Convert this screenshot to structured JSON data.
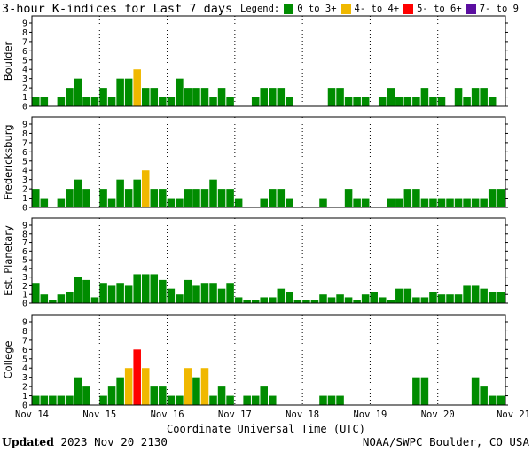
{
  "title": "3-hour K-indices for Last 7 days",
  "legend": {
    "label": "Legend:",
    "items": [
      {
        "label": "0 to 3+",
        "color": "#008c00"
      },
      {
        "label": "4- to 4+",
        "color": "#f0b800"
      },
      {
        "label": "5- to 6+",
        "color": "#ff0000"
      },
      {
        "label": "7- to 9",
        "color": "#5b0ea0"
      }
    ]
  },
  "footer": {
    "updated_label": "Updated",
    "updated_value": "2023 Nov 20 2130",
    "credit": "NOAA/SWPC Boulder, CO USA"
  },
  "chart_data": {
    "type": "bar",
    "xlabel": "Coordinate Universal Time (UTC)",
    "x_tick_labels": [
      "Nov 14",
      "Nov 15",
      "Nov 16",
      "Nov 17",
      "Nov 18",
      "Nov 19",
      "Nov 20",
      "Nov 21"
    ],
    "yticks": [
      0,
      1,
      2,
      3,
      4,
      5,
      6,
      7,
      8,
      9
    ],
    "ylim": [
      0,
      9
    ],
    "bars_per_day": 8,
    "color_thresholds": [
      {
        "min": 0,
        "color": "#008c00"
      },
      {
        "min": 3.67,
        "color": "#f0b800"
      },
      {
        "min": 4.67,
        "color": "#ff0000"
      },
      {
        "min": 6.67,
        "color": "#5b0ea0"
      }
    ],
    "panels": [
      {
        "name": "Boulder",
        "values": [
          1,
          1,
          0,
          1,
          2,
          3,
          1,
          1,
          2,
          1,
          3,
          3,
          4,
          2,
          2,
          1,
          1,
          3,
          2,
          2,
          2,
          1,
          2,
          1,
          0,
          0,
          1,
          2,
          2,
          2,
          1,
          0,
          0,
          0,
          0,
          2,
          2,
          1,
          1,
          1,
          0,
          1,
          2,
          1,
          1,
          1,
          2,
          1,
          1,
          0,
          2,
          1,
          2,
          2,
          1,
          0
        ]
      },
      {
        "name": "Fredericksburg",
        "values": [
          2,
          1,
          0,
          1,
          2,
          3,
          2,
          0,
          2,
          1,
          3,
          2,
          3,
          4,
          2,
          2,
          1,
          1,
          2,
          2,
          2,
          3,
          2,
          2,
          1,
          0,
          0,
          1,
          2,
          2,
          1,
          0,
          0,
          0,
          1,
          0,
          0,
          2,
          1,
          1,
          0,
          0,
          1,
          1,
          2,
          2,
          1,
          1,
          1,
          1,
          1,
          1,
          1,
          1,
          2,
          2
        ]
      },
      {
        "name": "Est. Planetary",
        "values": [
          2.33,
          1,
          0.33,
          1,
          1.33,
          3,
          2.67,
          0.67,
          2.33,
          2,
          2.33,
          2,
          3.33,
          3.33,
          3.33,
          2.67,
          1.67,
          1,
          2.67,
          2,
          2.33,
          2.33,
          1.67,
          2.33,
          0.67,
          0.33,
          0.33,
          0.67,
          0.67,
          1.67,
          1.33,
          0.33,
          0.33,
          0.33,
          1,
          0.67,
          1,
          0.67,
          0.33,
          1,
          1.33,
          0.67,
          0.33,
          1.67,
          1.67,
          0.67,
          0.67,
          1.33,
          1,
          1,
          1,
          2,
          2,
          1.67,
          1.33,
          1.33
        ]
      },
      {
        "name": "College",
        "values": [
          1,
          1,
          1,
          1,
          1,
          3,
          2,
          0,
          1,
          2,
          3,
          4,
          6,
          4,
          2,
          2,
          1,
          1,
          4,
          3,
          4,
          1,
          2,
          1,
          0,
          1,
          1,
          2,
          1,
          0,
          0,
          0,
          0,
          0,
          1,
          1,
          1,
          0,
          0,
          0,
          0,
          0,
          0,
          0,
          0,
          3,
          3,
          0,
          0,
          0,
          0,
          0,
          3,
          2,
          1,
          1
        ]
      }
    ]
  }
}
